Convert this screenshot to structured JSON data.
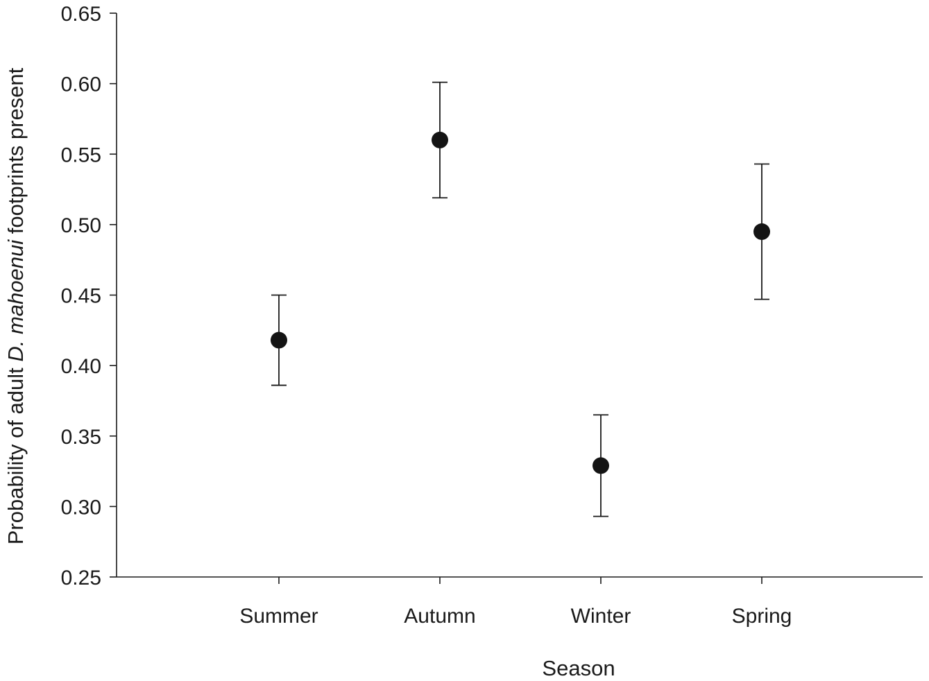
{
  "chart_data": {
    "type": "scatter",
    "xlabel": "Season",
    "ylabel": {
      "before": "Probability of adult ",
      "italic": "D. mahoenui",
      "after": " footprints present"
    },
    "categories": [
      "Summer",
      "Autumn",
      "Winter",
      "Spring"
    ],
    "series": [
      {
        "values": [
          0.418,
          0.56,
          0.329,
          0.495
        ],
        "error_lower": [
          0.386,
          0.519,
          0.293,
          0.447
        ],
        "error_upper": [
          0.45,
          0.601,
          0.365,
          0.543
        ]
      }
    ],
    "ylim": [
      0.25,
      0.65
    ],
    "yticks": [
      "0.25",
      "0.30",
      "0.35",
      "0.40",
      "0.45",
      "0.50",
      "0.55",
      "0.60",
      "0.65"
    ],
    "grid": false,
    "legend": "none",
    "marker_color": "#141414"
  }
}
